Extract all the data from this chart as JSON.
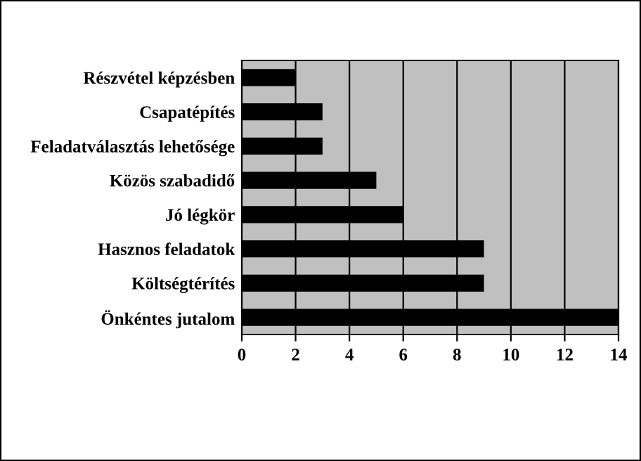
{
  "chart_data": {
    "type": "bar",
    "orientation": "horizontal",
    "categories": [
      "Részvétel képzésben",
      "Csapatépítés",
      "Feladatválasztás lehetősége",
      "Közös szabadidő",
      "Jó légkör",
      "Hasznos feladatok",
      "Költségtérítés",
      "Önkéntes jutalom"
    ],
    "values": [
      2,
      3,
      3,
      5,
      6,
      9,
      9,
      14
    ],
    "color": "#000000",
    "xlim": [
      0,
      14
    ],
    "xticks": [
      0,
      2,
      4,
      6,
      8,
      10,
      12,
      14
    ],
    "grid": "x"
  }
}
